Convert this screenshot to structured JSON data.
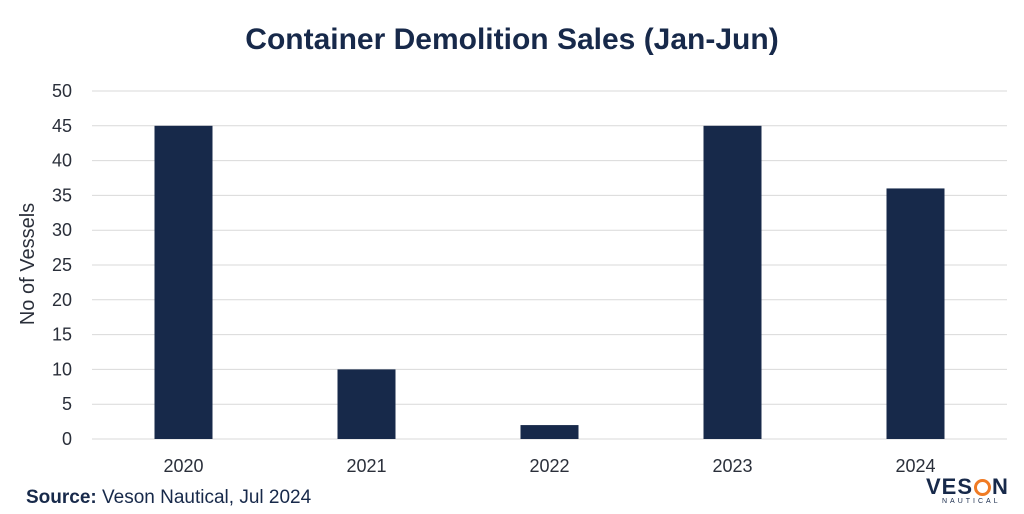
{
  "chart_data": {
    "type": "bar",
    "title": "Container Demolition Sales (Jan-Jun)",
    "ylabel": "No of Vessels",
    "xlabel": "",
    "categories": [
      "2020",
      "2021",
      "2022",
      "2023",
      "2024"
    ],
    "values": [
      45,
      10,
      2,
      45,
      36
    ],
    "ylim": [
      0,
      50
    ],
    "yticks": [
      0,
      5,
      10,
      15,
      20,
      25,
      30,
      35,
      40,
      45,
      50
    ],
    "grid": true,
    "bar_color": "#17294a",
    "grid_color": "#d9d9d9"
  },
  "source": {
    "label": "Source:",
    "text": " Veson Nautical, Jul 2024"
  },
  "logo": {
    "pre": "VES",
    "post": "N",
    "sub": "NAUTICAL",
    "accent": "#f07b24"
  }
}
